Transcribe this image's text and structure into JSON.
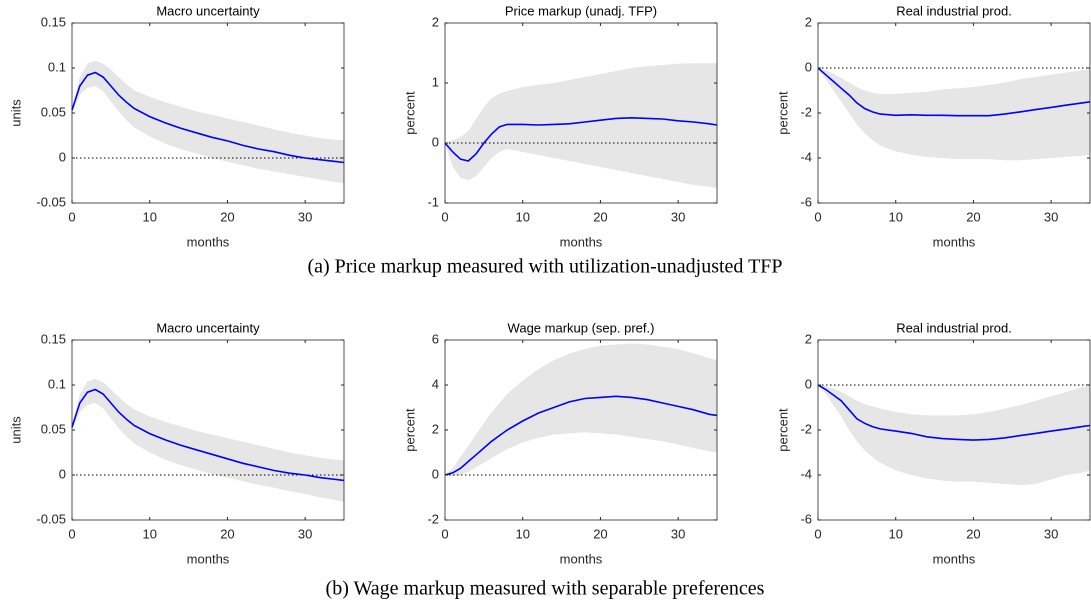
{
  "chart_data": [
    {
      "type": "line",
      "title": "Macro uncertainty",
      "xlabel": "months",
      "ylabel": "units",
      "x": [
        0,
        1,
        2,
        3,
        4,
        5,
        6,
        7,
        8,
        10,
        12,
        14,
        16,
        18,
        20,
        22,
        24,
        26,
        28,
        30,
        32,
        34,
        35
      ],
      "series": [
        {
          "color": "#0000ff",
          "values": [
            0.053,
            0.08,
            0.092,
            0.095,
            0.09,
            0.08,
            0.07,
            0.062,
            0.055,
            0.046,
            0.039,
            0.033,
            0.028,
            0.023,
            0.019,
            0.014,
            0.01,
            0.007,
            0.003,
            0.0,
            -0.002,
            -0.004,
            -0.005
          ]
        }
      ],
      "band": {
        "color": "#e6e6e6",
        "upper": [
          0.055,
          0.09,
          0.105,
          0.108,
          0.105,
          0.098,
          0.09,
          0.082,
          0.075,
          0.068,
          0.062,
          0.057,
          0.052,
          0.048,
          0.044,
          0.04,
          0.036,
          0.032,
          0.028,
          0.025,
          0.022,
          0.02,
          0.02
        ],
        "lower": [
          0.05,
          0.07,
          0.078,
          0.08,
          0.074,
          0.063,
          0.052,
          0.042,
          0.034,
          0.024,
          0.016,
          0.01,
          0.005,
          0.0,
          -0.004,
          -0.008,
          -0.012,
          -0.015,
          -0.018,
          -0.021,
          -0.024,
          -0.027,
          -0.028
        ]
      },
      "reference_line": 0,
      "xlim": [
        0,
        35
      ],
      "xticks": [
        0,
        10,
        20,
        30
      ],
      "ylim": [
        -0.05,
        0.15
      ],
      "yticks": [
        -0.05,
        0,
        0.05,
        0.1,
        0.15
      ]
    },
    {
      "type": "line",
      "title": "Price markup (unadj. TFP)",
      "xlabel": "months",
      "ylabel": "percent",
      "x": [
        0,
        1,
        2,
        3,
        4,
        5,
        6,
        7,
        8,
        10,
        12,
        14,
        16,
        18,
        20,
        22,
        24,
        26,
        28,
        30,
        32,
        34,
        35
      ],
      "series": [
        {
          "color": "#0000ff",
          "values": [
            0,
            -0.15,
            -0.27,
            -0.3,
            -0.18,
            0.0,
            0.15,
            0.27,
            0.31,
            0.31,
            0.3,
            0.31,
            0.32,
            0.35,
            0.38,
            0.41,
            0.42,
            0.41,
            0.4,
            0.37,
            0.35,
            0.32,
            0.3
          ]
        }
      ],
      "band": {
        "color": "#e6e6e6",
        "upper": [
          0,
          0.05,
          0.1,
          0.2,
          0.4,
          0.6,
          0.75,
          0.82,
          0.87,
          0.93,
          0.97,
          1.0,
          1.05,
          1.1,
          1.15,
          1.2,
          1.25,
          1.28,
          1.3,
          1.32,
          1.33,
          1.33,
          1.33
        ],
        "lower": [
          0,
          -0.4,
          -0.58,
          -0.62,
          -0.55,
          -0.4,
          -0.25,
          -0.15,
          -0.1,
          -0.15,
          -0.2,
          -0.25,
          -0.3,
          -0.35,
          -0.4,
          -0.45,
          -0.5,
          -0.55,
          -0.6,
          -0.65,
          -0.7,
          -0.73,
          -0.75
        ]
      },
      "reference_line": 0,
      "xlim": [
        0,
        35
      ],
      "xticks": [
        0,
        10,
        20,
        30
      ],
      "ylim": [
        -1,
        2
      ],
      "yticks": [
        -1,
        0,
        1,
        2
      ]
    },
    {
      "type": "line",
      "title": "Real industrial prod.",
      "xlabel": "months",
      "ylabel": "percent",
      "x": [
        0,
        1,
        2,
        3,
        4,
        5,
        6,
        7,
        8,
        10,
        12,
        14,
        16,
        18,
        20,
        22,
        24,
        26,
        28,
        30,
        32,
        34,
        35
      ],
      "series": [
        {
          "color": "#0000ff",
          "values": [
            0,
            -0.3,
            -0.6,
            -0.9,
            -1.2,
            -1.55,
            -1.8,
            -1.95,
            -2.05,
            -2.1,
            -2.08,
            -2.1,
            -2.1,
            -2.12,
            -2.12,
            -2.12,
            -2.05,
            -1.95,
            -1.85,
            -1.75,
            -1.65,
            -1.55,
            -1.5
          ]
        }
      ],
      "band": {
        "color": "#e6e6e6",
        "upper": [
          0,
          -0.1,
          -0.25,
          -0.45,
          -0.65,
          -0.85,
          -1.0,
          -1.1,
          -1.15,
          -1.15,
          -1.1,
          -1.05,
          -0.95,
          -0.9,
          -0.85,
          -0.75,
          -0.65,
          -0.5,
          -0.4,
          -0.3,
          -0.2,
          -0.1,
          -0.05
        ],
        "lower": [
          0,
          -0.5,
          -1.0,
          -1.5,
          -2.0,
          -2.5,
          -2.9,
          -3.2,
          -3.45,
          -3.7,
          -3.85,
          -3.95,
          -4.0,
          -4.05,
          -4.05,
          -4.05,
          -4.1,
          -4.1,
          -4.05,
          -4.0,
          -3.95,
          -3.9,
          -3.85
        ]
      },
      "reference_line": 0,
      "xlim": [
        0,
        35
      ],
      "xticks": [
        0,
        10,
        20,
        30
      ],
      "ylim": [
        -6,
        2
      ],
      "yticks": [
        -6,
        -4,
        -2,
        0,
        2
      ]
    },
    {
      "type": "line",
      "title": "Macro uncertainty",
      "xlabel": "months",
      "ylabel": "units",
      "x": [
        0,
        1,
        2,
        3,
        4,
        5,
        6,
        7,
        8,
        10,
        12,
        14,
        16,
        18,
        20,
        22,
        24,
        26,
        28,
        30,
        32,
        34,
        35
      ],
      "series": [
        {
          "color": "#0000ff",
          "values": [
            0.053,
            0.08,
            0.092,
            0.095,
            0.09,
            0.08,
            0.07,
            0.062,
            0.055,
            0.046,
            0.039,
            0.033,
            0.028,
            0.023,
            0.018,
            0.013,
            0.009,
            0.005,
            0.002,
            0.0,
            -0.003,
            -0.005,
            -0.006
          ]
        }
      ],
      "band": {
        "color": "#e6e6e6",
        "upper": [
          0.055,
          0.09,
          0.104,
          0.107,
          0.103,
          0.095,
          0.087,
          0.079,
          0.073,
          0.065,
          0.059,
          0.054,
          0.049,
          0.045,
          0.041,
          0.037,
          0.033,
          0.029,
          0.025,
          0.022,
          0.019,
          0.017,
          0.016
        ],
        "lower": [
          0.05,
          0.07,
          0.078,
          0.08,
          0.074,
          0.063,
          0.052,
          0.043,
          0.035,
          0.025,
          0.017,
          0.011,
          0.006,
          0.001,
          -0.003,
          -0.007,
          -0.011,
          -0.014,
          -0.018,
          -0.021,
          -0.025,
          -0.028,
          -0.03
        ]
      },
      "reference_line": 0,
      "xlim": [
        0,
        35
      ],
      "xticks": [
        0,
        10,
        20,
        30
      ],
      "ylim": [
        -0.05,
        0.15
      ],
      "yticks": [
        -0.05,
        0,
        0.05,
        0.1,
        0.15
      ]
    },
    {
      "type": "line",
      "title": "Wage markup (sep. pref.)",
      "xlabel": "months",
      "ylabel": "percent",
      "x": [
        0,
        1,
        2,
        3,
        4,
        5,
        6,
        7,
        8,
        10,
        12,
        14,
        16,
        18,
        20,
        22,
        24,
        26,
        28,
        30,
        32,
        34,
        35
      ],
      "series": [
        {
          "color": "#0000ff",
          "values": [
            0,
            0.1,
            0.3,
            0.6,
            0.9,
            1.2,
            1.5,
            1.75,
            2.0,
            2.4,
            2.75,
            3.0,
            3.25,
            3.4,
            3.45,
            3.5,
            3.45,
            3.35,
            3.2,
            3.05,
            2.9,
            2.7,
            2.65
          ]
        }
      ],
      "band": {
        "color": "#e6e6e6",
        "upper": [
          0,
          0.3,
          0.8,
          1.3,
          1.8,
          2.3,
          2.8,
          3.2,
          3.6,
          4.2,
          4.7,
          5.1,
          5.4,
          5.6,
          5.75,
          5.8,
          5.85,
          5.8,
          5.7,
          5.6,
          5.4,
          5.2,
          5.1
        ],
        "lower": [
          0,
          -0.05,
          0.0,
          0.15,
          0.35,
          0.55,
          0.75,
          0.95,
          1.15,
          1.45,
          1.65,
          1.8,
          1.85,
          1.9,
          1.85,
          1.8,
          1.7,
          1.6,
          1.5,
          1.35,
          1.2,
          1.05,
          1.0
        ]
      },
      "reference_line": 0,
      "xlim": [
        0,
        35
      ],
      "xticks": [
        0,
        10,
        20,
        30
      ],
      "ylim": [
        -2,
        6
      ],
      "yticks": [
        -2,
        0,
        2,
        4,
        6
      ]
    },
    {
      "type": "line",
      "title": "Real industrial prod.",
      "xlabel": "months",
      "ylabel": "percent",
      "x": [
        0,
        1,
        2,
        3,
        4,
        5,
        6,
        7,
        8,
        10,
        12,
        14,
        16,
        18,
        20,
        22,
        24,
        26,
        28,
        30,
        32,
        34,
        35
      ],
      "series": [
        {
          "color": "#0000ff",
          "values": [
            0,
            -0.2,
            -0.45,
            -0.7,
            -1.1,
            -1.5,
            -1.7,
            -1.85,
            -1.95,
            -2.05,
            -2.15,
            -2.3,
            -2.38,
            -2.42,
            -2.45,
            -2.42,
            -2.35,
            -2.25,
            -2.15,
            -2.05,
            -1.95,
            -1.85,
            -1.8
          ]
        }
      ],
      "band": {
        "color": "#e6e6e6",
        "upper": [
          0,
          -0.05,
          -0.15,
          -0.3,
          -0.5,
          -0.7,
          -0.85,
          -0.95,
          -1.05,
          -1.2,
          -1.3,
          -1.35,
          -1.35,
          -1.35,
          -1.3,
          -1.2,
          -1.05,
          -0.9,
          -0.7,
          -0.5,
          -0.3,
          -0.1,
          0.0
        ],
        "lower": [
          0,
          -0.4,
          -0.9,
          -1.4,
          -2.0,
          -2.5,
          -2.9,
          -3.2,
          -3.45,
          -3.8,
          -4.0,
          -4.15,
          -4.25,
          -4.3,
          -4.3,
          -4.35,
          -4.4,
          -4.45,
          -4.4,
          -4.2,
          -4.0,
          -3.9,
          -3.8
        ]
      },
      "reference_line": 0,
      "xlim": [
        0,
        35
      ],
      "xticks": [
        0,
        10,
        20,
        30
      ],
      "ylim": [
        -6,
        2
      ],
      "yticks": [
        -6,
        -4,
        -2,
        0,
        2
      ]
    }
  ],
  "captions": [
    "(a) Price markup measured with utilization-unadjusted TFP",
    "(b) Wage markup measured with separable preferences"
  ]
}
